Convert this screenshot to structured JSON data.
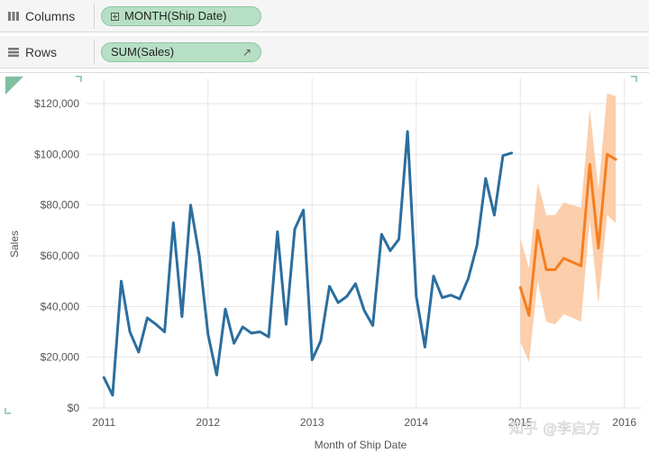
{
  "shelves": {
    "columns": {
      "label": "Columns",
      "pill": "MONTH(Ship Date)"
    },
    "rows": {
      "label": "Rows",
      "pill": "SUM(Sales)",
      "pill_arrow": "↗"
    }
  },
  "watermark": "知乎 @李启方",
  "colors": {
    "actual": "#2c6e9f",
    "forecast": "#f47f20",
    "band": "#fcc69c",
    "pill_bg": "#b7dfc5",
    "grid": "#e6e6e6"
  },
  "chart_data": {
    "type": "line",
    "xlabel": "Month of Ship Date",
    "ylabel": "Sales",
    "x_ticks": [
      "2011",
      "2012",
      "2013",
      "2014",
      "2015",
      "2016"
    ],
    "y_ticks": [
      "$0",
      "$20,000",
      "$40,000",
      "$60,000",
      "$80,000",
      "$100,000",
      "$120,000"
    ],
    "ylim": [
      0,
      120000
    ],
    "x_range": [
      "2010-11",
      "2016-03"
    ],
    "grid": true,
    "series": [
      {
        "kind": "actual",
        "start": "2011-01",
        "values": [
          12000,
          5000,
          50000,
          30000,
          22000,
          35500,
          33000,
          30000,
          73000,
          36000,
          80000,
          60000,
          29000,
          13000,
          39000,
          25500,
          32000,
          29500,
          30000,
          28000,
          69500,
          33000,
          70500,
          78000,
          19000,
          26500,
          48000,
          41500,
          44000,
          49000,
          38500,
          32500,
          68500,
          62000,
          66500,
          109000,
          44000,
          24000,
          52000,
          43500,
          44500,
          43000,
          51000,
          64000,
          90500,
          76000,
          99500,
          100500
        ]
      },
      {
        "kind": "forecast",
        "start": "2015-01",
        "values": [
          47500,
          36500,
          70000,
          54500,
          54500,
          59000,
          57500,
          56000,
          96000,
          63000,
          100000,
          98000
        ],
        "upper": [
          67000,
          55000,
          89000,
          76000,
          76000,
          81000,
          80000,
          79000,
          118000,
          86000,
          124000,
          123000
        ],
        "lower": [
          26000,
          18000,
          50000,
          34000,
          33000,
          37000,
          35500,
          34000,
          74000,
          41000,
          76000,
          73000
        ]
      }
    ]
  }
}
